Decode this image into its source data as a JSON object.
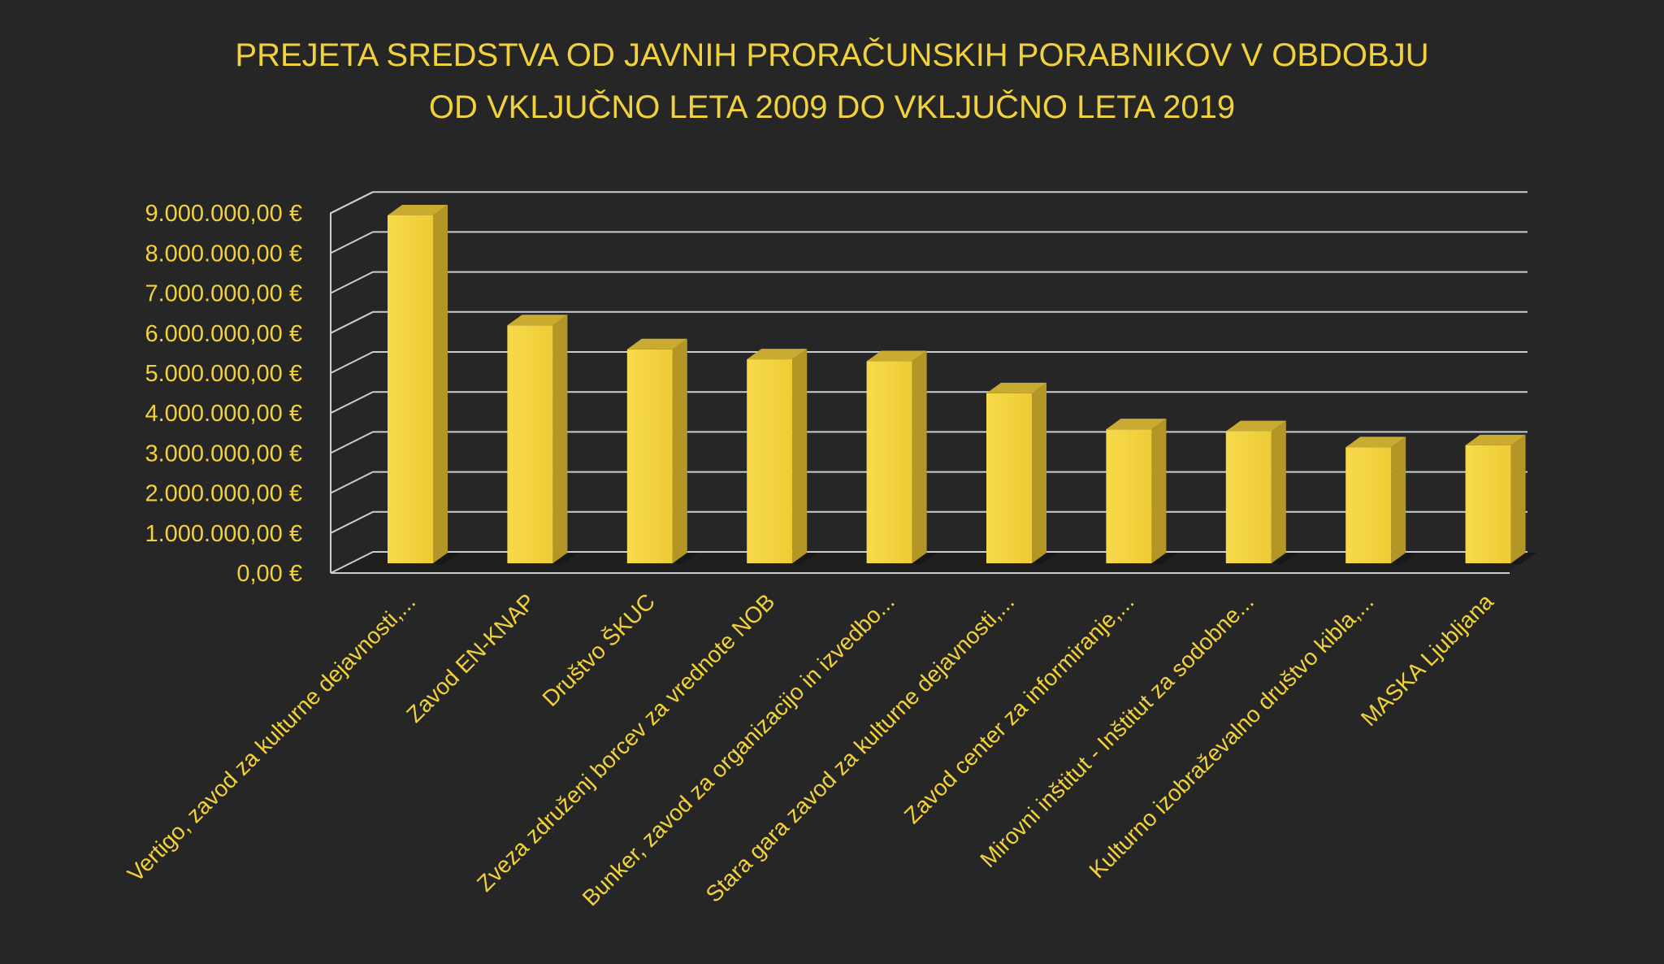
{
  "chart_data": {
    "type": "bar",
    "title_lines": [
      "PREJETA SREDSTVA OD JAVNIH PRORAČUNSKIH PORABNIKOV V OBDOBJU",
      "OD VKLJUČNO LETA 2009 DO VKLJUČNO LETA 2019"
    ],
    "categories": [
      "Vertigo, zavod za kulturne dejavnosti,...",
      "Zavod EN-KNAP",
      "Društvo ŠKUC",
      "Zveza združenj borcev za vrednote NOB",
      "Bunker, zavod za organizacijo in izvedbo...",
      "Stara gara zavod za kulturne dejavnosti,...",
      "Zavod center za informiranje,...",
      "Mirovni inštitut - Inštitut za sodobne...",
      "Kulturno izobraževalno društvo kibla,...",
      "MASKA Ljubljana"
    ],
    "values": [
      8700000,
      5950000,
      5350000,
      5100000,
      5050000,
      4250000,
      3350000,
      3300000,
      2900000,
      2950000
    ],
    "y_ticks": [
      "0,00 €",
      "1.000.000,00 €",
      "2.000.000,00 €",
      "3.000.000,00 €",
      "4.000.000,00 €",
      "5.000.000,00 €",
      "6.000.000,00 €",
      "7.000.000,00 €",
      "8.000.000,00 €",
      "9.000.000,00 €"
    ],
    "ylim": [
      0,
      9000000
    ],
    "grid": true,
    "style": "3d",
    "colors": {
      "background": "#262626",
      "text": "#f2d23c",
      "bar_front": "#f5d442",
      "bar_side": "#b39626",
      "bar_top": "#c8ab30",
      "grid": "#c9ced6"
    }
  }
}
